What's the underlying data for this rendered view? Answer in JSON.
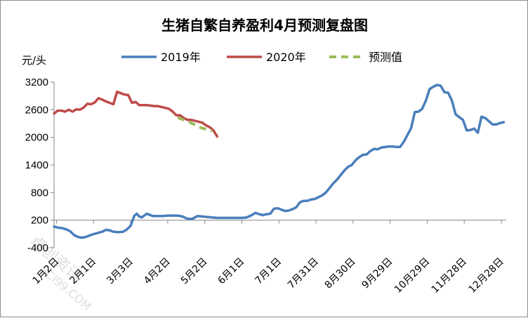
{
  "chart_data": {
    "type": "line",
    "title": "生猪自繁自养盈利4月预测复盘图",
    "ylabel": "元/头",
    "ylim": [
      -400,
      3200
    ],
    "yticks": [
      -400,
      200,
      800,
      1400,
      2000,
      2600,
      3200
    ],
    "x_tick_labels": [
      "1月2日",
      "2月1日",
      "3月3日",
      "4月2日",
      "5月2日",
      "6月1日",
      "7月1日",
      "7月31日",
      "8月30日",
      "9月29日",
      "10月29日",
      "11月28日",
      "12月28日"
    ],
    "x_unit": "day_of_year",
    "x_tick_positions": [
      2,
      32,
      62,
      92,
      122,
      152,
      182,
      212,
      242,
      272,
      302,
      332,
      362
    ],
    "xlim": [
      0,
      366
    ],
    "grid": false,
    "legend_position": "top",
    "series": [
      {
        "name": "2019年",
        "color": "#4a7ebb",
        "dashed": false,
        "x": [
          0,
          3,
          7,
          10,
          13,
          16,
          19,
          22,
          25,
          28,
          31,
          35,
          39,
          42,
          45,
          48,
          52,
          56,
          59,
          62,
          65,
          67,
          69,
          71,
          73,
          75,
          77,
          80,
          84,
          88,
          92,
          96,
          100,
          104,
          108,
          112,
          116,
          120,
          124,
          128,
          132,
          136,
          140,
          144,
          148,
          152,
          156,
          160,
          163,
          166,
          169,
          172,
          175,
          178,
          181,
          184,
          187,
          190,
          193,
          196,
          199,
          202,
          205,
          208,
          211,
          214,
          217,
          220,
          223,
          226,
          229,
          232,
          235,
          238,
          241,
          244,
          247,
          250,
          253,
          256,
          259,
          262,
          265,
          268,
          271,
          274,
          277,
          280,
          283,
          286,
          289,
          292,
          295,
          298,
          301,
          304,
          307,
          310,
          313,
          316,
          319,
          322,
          325,
          328,
          331,
          334,
          337,
          340,
          343,
          346,
          349,
          352,
          355,
          358,
          361,
          364
        ],
        "values": [
          60,
          40,
          25,
          0,
          -40,
          -120,
          -160,
          -180,
          -170,
          -140,
          -110,
          -80,
          -50,
          -10,
          -20,
          -50,
          -60,
          -50,
          0,
          80,
          300,
          340,
          280,
          260,
          300,
          340,
          320,
          290,
          290,
          290,
          300,
          300,
          300,
          280,
          230,
          230,
          290,
          280,
          270,
          260,
          250,
          250,
          250,
          250,
          250,
          250,
          260,
          310,
          360,
          330,
          310,
          330,
          340,
          450,
          460,
          430,
          400,
          410,
          440,
          480,
          590,
          620,
          620,
          650,
          660,
          700,
          740,
          800,
          900,
          1000,
          1080,
          1180,
          1280,
          1360,
          1400,
          1500,
          1570,
          1620,
          1630,
          1700,
          1750,
          1740,
          1780,
          1790,
          1800,
          1800,
          1790,
          1790,
          1900,
          2050,
          2200,
          2550,
          2560,
          2620,
          2800,
          3050,
          3100,
          3140,
          3120,
          2980,
          2970,
          2800,
          2500,
          2440,
          2380,
          2150,
          2160,
          2190,
          2100,
          2450,
          2420,
          2350,
          2280,
          2280,
          2310,
          2330
        ]
      },
      {
        "name": "2020年",
        "color": "#be4b48",
        "dashed": false,
        "x": [
          0,
          3,
          6,
          9,
          12,
          15,
          18,
          21,
          24,
          27,
          30,
          33,
          36,
          39,
          42,
          45,
          48,
          51,
          54,
          57,
          60,
          63,
          66,
          69,
          72,
          75,
          78,
          81,
          84,
          87,
          90,
          93,
          96,
          99,
          102,
          105,
          108,
          111,
          114,
          117,
          120,
          123,
          126,
          129,
          132
        ],
        "values": [
          2520,
          2580,
          2580,
          2560,
          2600,
          2560,
          2610,
          2600,
          2650,
          2730,
          2720,
          2760,
          2850,
          2820,
          2780,
          2750,
          2720,
          2990,
          2960,
          2930,
          2920,
          2750,
          2770,
          2700,
          2700,
          2700,
          2690,
          2680,
          2680,
          2660,
          2640,
          2620,
          2560,
          2480,
          2480,
          2420,
          2380,
          2380,
          2360,
          2340,
          2320,
          2260,
          2220,
          2150,
          2020
        ]
      },
      {
        "name": "预测值",
        "color": "#9bbb59",
        "dashed": true,
        "x": [
          100,
          104,
          108,
          112,
          116,
          120,
          124,
          128
        ],
        "values": [
          2430,
          2390,
          2350,
          2300,
          2240,
          2200,
          2170,
          2140
        ]
      }
    ]
  }
}
